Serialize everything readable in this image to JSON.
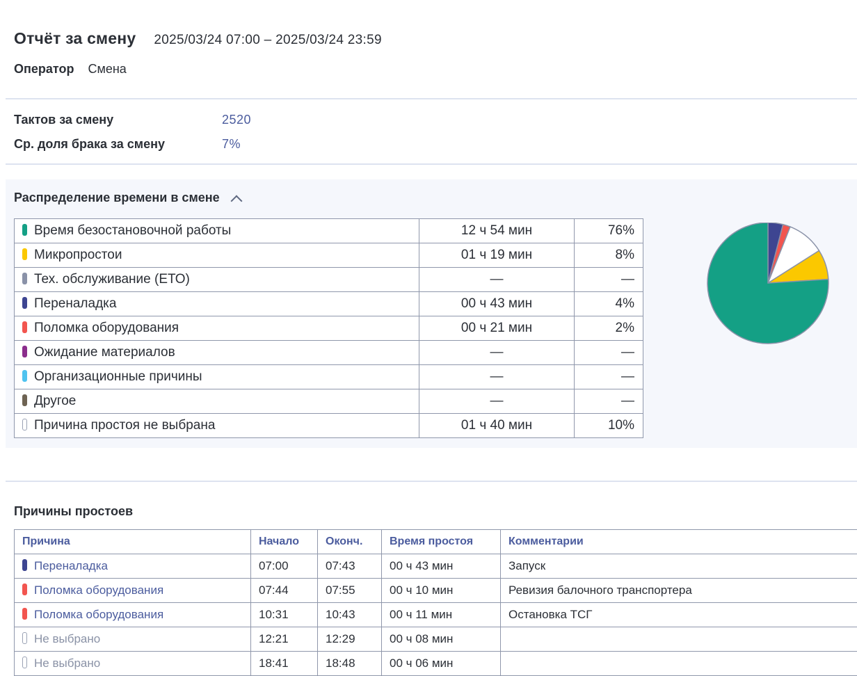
{
  "header": {
    "title": "Отчёт за смену",
    "period": "2025/03/24  07:00  –  2025/03/24  23:59",
    "operator_label": "Оператор",
    "operator_value": "Смена"
  },
  "kpis": [
    {
      "label": "Тактов за смену",
      "value": "2520"
    },
    {
      "label": "Ср. доля брака за смену",
      "value": "7%"
    }
  ],
  "distribution": {
    "title": "Распределение времени в смене",
    "rows": [
      {
        "name": "Время безостановочной работы",
        "color": "#14a085",
        "duration": "12 ч 54 мин",
        "percent": "76%",
        "value": 76
      },
      {
        "name": "Микропростои",
        "color": "#fbc800",
        "duration": "01 ч 19 мин",
        "percent": "8%",
        "value": 8
      },
      {
        "name": "Тех. обслуживание (ЕТО)",
        "color": "#8a92a8",
        "duration": "—",
        "percent": "—",
        "value": 0
      },
      {
        "name": "Переналадка",
        "color": "#3d4591",
        "duration": "00 ч 43 мин",
        "percent": "4%",
        "value": 4
      },
      {
        "name": "Поломка оборудования",
        "color": "#f2554f",
        "duration": "00 ч 21 мин",
        "percent": "2%",
        "value": 2
      },
      {
        "name": "Ожидание материалов",
        "color": "#8b2d8c",
        "duration": "—",
        "percent": "—",
        "value": 0
      },
      {
        "name": "Организационные причины",
        "color": "#4fc3ef",
        "duration": "—",
        "percent": "—",
        "value": 0
      },
      {
        "name": "Другое",
        "color": "#6e6353",
        "duration": "—",
        "percent": "—",
        "value": 0
      },
      {
        "name": "Причина простоя не выбрана",
        "color": "#ffffff",
        "duration": "01 ч 40 мин",
        "percent": "10%",
        "value": 10
      }
    ]
  },
  "chart_data": {
    "type": "pie",
    "categories": [
      "Переналадка",
      "Поломка оборудования",
      "Причина простоя не выбрана",
      "Микропростои",
      "Время безостановочной работы"
    ],
    "values": [
      4,
      2,
      10,
      8,
      76
    ],
    "colors": [
      "#3d4591",
      "#f2554f",
      "#ffffff",
      "#fbc800",
      "#14a085"
    ]
  },
  "downtime": {
    "title": "Причины простоев",
    "columns": [
      "Причина",
      "Начало",
      "Оконч.",
      "Время простоя",
      "Комментарии"
    ],
    "rows": [
      {
        "reason": "Переналадка",
        "color": "#3d4591",
        "start": "07:00",
        "end": "07:43",
        "duration": "00 ч 43 мин",
        "comment": "Запуск"
      },
      {
        "reason": "Поломка оборудования",
        "color": "#f2554f",
        "start": "07:44",
        "end": "07:55",
        "duration": "00 ч 10 мин",
        "comment": "Ревизия балочного транспортера"
      },
      {
        "reason": "Поломка оборудования",
        "color": "#f2554f",
        "start": "10:31",
        "end": "10:43",
        "duration": "00 ч 11 мин",
        "comment": "Остановка ТСГ"
      },
      {
        "reason": "Не выбрано",
        "color": "#ffffff",
        "start": "12:21",
        "end": "12:29",
        "duration": "00 ч 08 мин",
        "comment": ""
      },
      {
        "reason": "Не выбрано",
        "color": "#ffffff",
        "start": "18:41",
        "end": "18:48",
        "duration": "00 ч 06 мин",
        "comment": ""
      }
    ]
  }
}
